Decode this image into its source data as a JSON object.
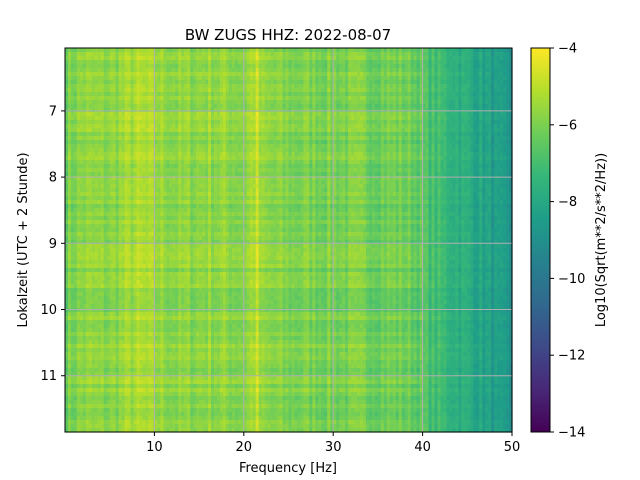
{
  "chart_data": {
    "type": "heatmap",
    "title": "BW ZUGS  HHZ: 2022-08-07",
    "xlabel": "Frequency [Hz]",
    "ylabel": "Lokalzeit (UTC + 2 Stunde)",
    "xlim": [
      0,
      50
    ],
    "ylim": [
      6.05,
      11.85
    ],
    "y_inverted": true,
    "grid": true,
    "x_ticks": [
      10,
      20,
      30,
      40,
      50
    ],
    "y_ticks": [
      7,
      8,
      9,
      10,
      11
    ],
    "colormap": "viridis",
    "colorbar": {
      "label": "Log10(Sqrt(m**2/s**2/Hz))",
      "range": [
        -14,
        -4
      ],
      "ticks": [
        -4,
        -6,
        -8,
        -10,
        -12,
        -14
      ]
    },
    "spectral_profile": {
      "frequency_hz": [
        0,
        2,
        5,
        8,
        10,
        13,
        16,
        20,
        21.5,
        22,
        25,
        30,
        35,
        38,
        39.5,
        40.5,
        42,
        44,
        46,
        48,
        50
      ],
      "log10_amplitude": [
        -6.2,
        -5.7,
        -5.8,
        -5.3,
        -5.5,
        -5.8,
        -5.6,
        -5.8,
        -5.0,
        -5.8,
        -6.0,
        -6.0,
        -6.1,
        -6.2,
        -6.4,
        -6.9,
        -7.2,
        -7.6,
        -8.0,
        -8.5,
        -9.0
      ]
    }
  },
  "colors": {
    "grid": "#b0b0b0",
    "axes": "#000000"
  }
}
